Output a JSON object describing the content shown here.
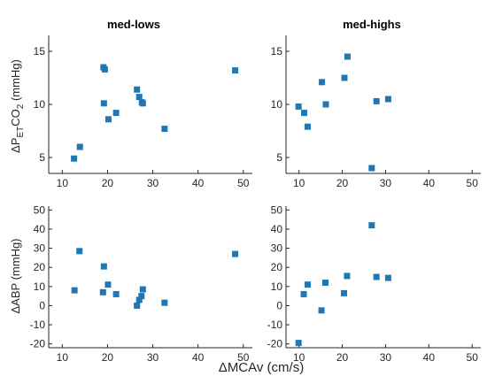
{
  "figure": {
    "xlabel": "ΔMCAv (cm/s)",
    "marker_color": "#1f77b4"
  },
  "chart_data": [
    {
      "type": "scatter",
      "title": "med-lows",
      "ylabel": {
        "delta": "ΔP",
        "sub1": "ET",
        "mid": "CO",
        "sub2": "2",
        "unit": " (mmHg)"
      },
      "xlim": [
        7,
        52
      ],
      "ylim": [
        3.5,
        16.5
      ],
      "xticks": [
        10,
        20,
        30,
        40,
        50
      ],
      "yticks": [
        5,
        10,
        15
      ],
      "grid": false,
      "points": [
        {
          "x": 12.6,
          "y": 4.9
        },
        {
          "x": 13.9,
          "y": 6.0
        },
        {
          "x": 19.1,
          "y": 13.5
        },
        {
          "x": 19.4,
          "y": 13.3
        },
        {
          "x": 19.2,
          "y": 10.1
        },
        {
          "x": 20.2,
          "y": 8.6
        },
        {
          "x": 21.9,
          "y": 9.2
        },
        {
          "x": 26.5,
          "y": 11.4
        },
        {
          "x": 27.0,
          "y": 10.7
        },
        {
          "x": 27.6,
          "y": 10.2
        },
        {
          "x": 27.8,
          "y": 10.1
        },
        {
          "x": 32.6,
          "y": 7.7
        },
        {
          "x": 48.2,
          "y": 13.2
        }
      ]
    },
    {
      "type": "scatter",
      "title": "med-highs",
      "ylabel": null,
      "xlim": [
        7,
        52
      ],
      "ylim": [
        3.5,
        16.5
      ],
      "xticks": [
        10,
        20,
        30,
        40,
        50
      ],
      "yticks": [
        5,
        10,
        15
      ],
      "grid": false,
      "points": [
        {
          "x": 9.9,
          "y": 9.8
        },
        {
          "x": 11.2,
          "y": 9.2
        },
        {
          "x": 12.0,
          "y": 7.9
        },
        {
          "x": 15.3,
          "y": 12.1
        },
        {
          "x": 16.2,
          "y": 10.0
        },
        {
          "x": 20.5,
          "y": 12.5
        },
        {
          "x": 21.2,
          "y": 14.5
        },
        {
          "x": 26.8,
          "y": 4.0
        },
        {
          "x": 27.9,
          "y": 10.3
        },
        {
          "x": 30.6,
          "y": 10.5
        }
      ]
    },
    {
      "type": "scatter",
      "title": null,
      "ylabel": {
        "delta": "ΔABP",
        "unit": " (mmHg)"
      },
      "xlim": [
        7,
        52
      ],
      "ylim": [
        -22,
        52
      ],
      "xticks": [
        10,
        20,
        30,
        40,
        50
      ],
      "yticks": [
        -20,
        -10,
        0,
        10,
        20,
        30,
        40,
        50
      ],
      "grid": false,
      "points": [
        {
          "x": 12.7,
          "y": 8.0
        },
        {
          "x": 13.8,
          "y": 28.5
        },
        {
          "x": 19.2,
          "y": 20.5
        },
        {
          "x": 19.0,
          "y": 7.0
        },
        {
          "x": 20.1,
          "y": 11.0
        },
        {
          "x": 21.9,
          "y": 6.0
        },
        {
          "x": 26.5,
          "y": 0.0
        },
        {
          "x": 27.0,
          "y": 3.0
        },
        {
          "x": 27.5,
          "y": 5.0
        },
        {
          "x": 27.8,
          "y": 8.5
        },
        {
          "x": 32.6,
          "y": 1.5
        },
        {
          "x": 48.2,
          "y": 27.0
        }
      ]
    },
    {
      "type": "scatter",
      "title": null,
      "ylabel": null,
      "xlim": [
        7,
        52
      ],
      "ylim": [
        -22,
        52
      ],
      "xticks": [
        10,
        20,
        30,
        40,
        50
      ],
      "yticks": [
        -20,
        -10,
        0,
        10,
        20,
        30,
        40,
        50
      ],
      "grid": false,
      "points": [
        {
          "x": 9.9,
          "y": -19.5
        },
        {
          "x": 11.1,
          "y": 6.0
        },
        {
          "x": 12.0,
          "y": 11.0
        },
        {
          "x": 15.2,
          "y": -2.5
        },
        {
          "x": 16.1,
          "y": 12.0
        },
        {
          "x": 20.4,
          "y": 6.5
        },
        {
          "x": 21.1,
          "y": 15.5
        },
        {
          "x": 26.8,
          "y": 42.0
        },
        {
          "x": 27.9,
          "y": 15.0
        },
        {
          "x": 30.6,
          "y": 14.5
        }
      ]
    }
  ]
}
